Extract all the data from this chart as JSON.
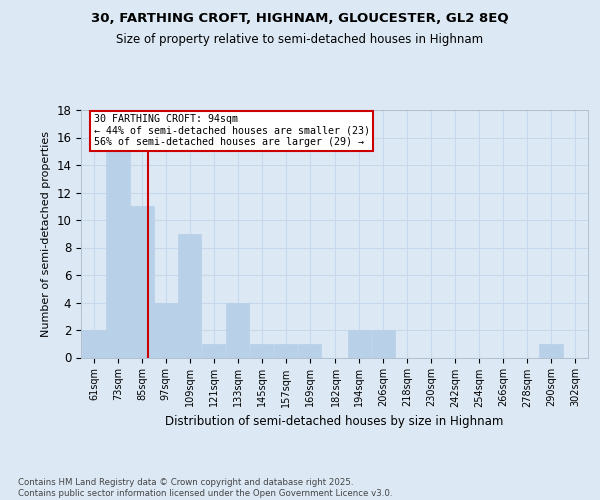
{
  "title1": "30, FARTHING CROFT, HIGHNAM, GLOUCESTER, GL2 8EQ",
  "title2": "Size of property relative to semi-detached houses in Highnam",
  "xlabel": "Distribution of semi-detached houses by size in Highnam",
  "ylabel": "Number of semi-detached properties",
  "categories": [
    "61sqm",
    "73sqm",
    "85sqm",
    "97sqm",
    "109sqm",
    "121sqm",
    "133sqm",
    "145sqm",
    "157sqm",
    "169sqm",
    "182sqm",
    "194sqm",
    "206sqm",
    "218sqm",
    "230sqm",
    "242sqm",
    "254sqm",
    "266sqm",
    "278sqm",
    "290sqm",
    "302sqm"
  ],
  "bin_lefts": [
    61,
    73,
    85,
    97,
    109,
    121,
    133,
    145,
    157,
    169,
    182,
    194,
    206,
    218,
    230,
    242,
    254,
    266,
    278,
    290,
    302
  ],
  "bin_width": 12,
  "values": [
    2,
    15,
    11,
    4,
    9,
    1,
    4,
    1,
    1,
    1,
    0,
    2,
    2,
    0,
    0,
    0,
    0,
    0,
    0,
    1,
    0
  ],
  "bar_color": "#b8d0e8",
  "property_value": 94,
  "property_label": "30 FARTHING CROFT: 94sqm",
  "annotation_line1": "← 44% of semi-detached houses are smaller (23)",
  "annotation_line2": "56% of semi-detached houses are larger (29) →",
  "red_line_color": "#cc0000",
  "ylim": [
    0,
    18
  ],
  "yticks": [
    0,
    2,
    4,
    6,
    8,
    10,
    12,
    14,
    16,
    18
  ],
  "footnote": "Contains HM Land Registry data © Crown copyright and database right 2025.\nContains public sector information licensed under the Open Government Licence v3.0.",
  "background_color": "#dce9f5",
  "grid_color": "#c8d8ec"
}
